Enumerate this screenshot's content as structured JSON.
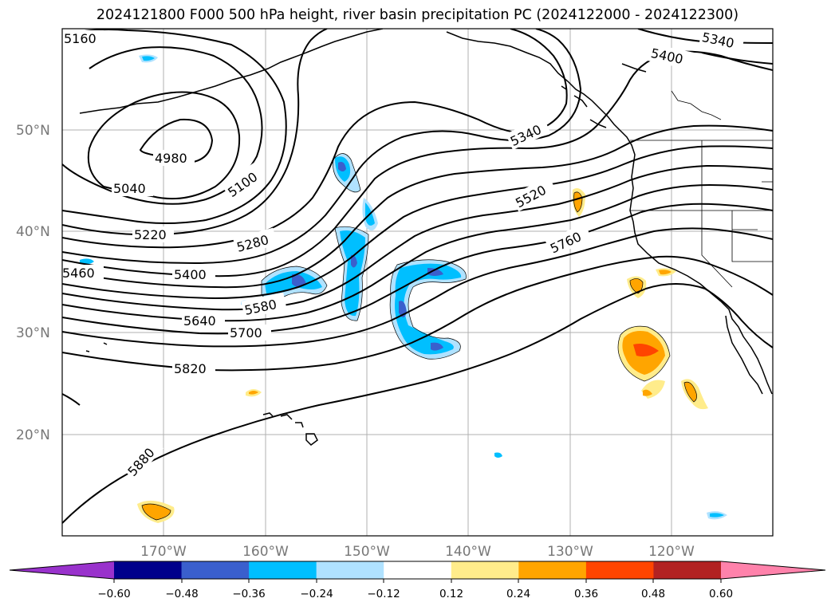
{
  "title": "2024121800 F000 500 hPa height, river basin precipitation PC (2024122000 - 2024122300)",
  "lat_ticks": [
    "50°N",
    "40°N",
    "30°N",
    "20°N"
  ],
  "lon_ticks": [
    "170°W",
    "160°W",
    "150°W",
    "140°W",
    "130°W",
    "120°W"
  ],
  "height_contour_labels": [
    "5160",
    "4980",
    "5040",
    "5100",
    "5220",
    "5280",
    "5340",
    "5340",
    "5400",
    "5400",
    "5460",
    "5520",
    "5580",
    "5640",
    "5700",
    "5760",
    "5820",
    "5880"
  ],
  "colorbar": {
    "tick_labels": [
      "−0.60",
      "−0.48",
      "−0.36",
      "−0.24",
      "−0.12",
      "0.12",
      "0.24",
      "0.36",
      "0.48",
      "0.60"
    ],
    "colors": [
      "#9932cc",
      "#00008b",
      "#3a5fcd",
      "#00bfff",
      "#b0e2ff",
      "#ffffff",
      "#ffec8b",
      "#ffa500",
      "#ff4500",
      "#b22222",
      "#ff82ab"
    ]
  }
}
